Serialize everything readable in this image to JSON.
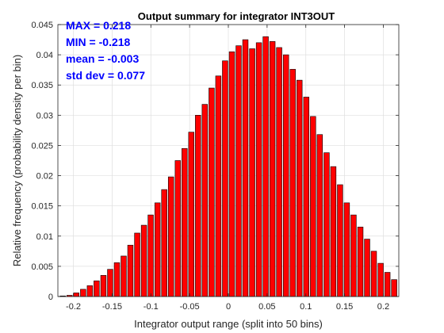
{
  "chart_data": {
    "type": "bar",
    "title": "Output summary for integrator INT3OUT",
    "xlabel": "Integrator output range (split into 50 bins)",
    "ylabel": "Relative frequency (probability density per bin)",
    "xlim": [
      -0.22,
      0.22
    ],
    "ylim": [
      0,
      0.045
    ],
    "xticks": [
      -0.2,
      -0.15,
      -0.1,
      -0.05,
      0,
      0.05,
      0.1,
      0.15,
      0.2
    ],
    "xtick_labels": [
      "-0.2",
      "-0.15",
      "-0.1",
      "-0.05",
      "0",
      "0.05",
      "0.1",
      "0.15",
      "0.2"
    ],
    "yticks": [
      0,
      0.005,
      0.01,
      0.015,
      0.02,
      0.025,
      0.03,
      0.035,
      0.04,
      0.045
    ],
    "ytick_labels": [
      "0",
      "0.005",
      "0.01",
      "0.015",
      "0.02",
      "0.025",
      "0.03",
      "0.035",
      "0.04",
      "0.045"
    ],
    "grid": true,
    "bar_color": "#ff0000",
    "bar_edge_color": "#000000",
    "x": [
      -0.2136,
      -0.2049,
      -0.1962,
      -0.1874,
      -0.1787,
      -0.17,
      -0.1612,
      -0.1525,
      -0.1438,
      -0.1351,
      -0.1264,
      -0.1176,
      -0.1089,
      -0.1002,
      -0.0914,
      -0.0827,
      -0.074,
      -0.0652,
      -0.0565,
      -0.0478,
      -0.0391,
      -0.0304,
      -0.0216,
      -0.0129,
      -0.0042,
      0.0046,
      0.0133,
      0.022,
      0.0308,
      0.0395,
      0.0482,
      0.0569,
      0.0656,
      0.0744,
      0.0831,
      0.0918,
      0.1006,
      0.1093,
      0.118,
      0.1268,
      0.1355,
      0.1442,
      0.1529,
      0.1616,
      0.1704,
      0.1791,
      0.1878,
      0.1966,
      0.2053,
      0.214
    ],
    "values": [
      0.0001,
      0.0002,
      0.0006,
      0.0012,
      0.0018,
      0.0026,
      0.0035,
      0.0045,
      0.0056,
      0.0067,
      0.0085,
      0.0105,
      0.0118,
      0.0135,
      0.0155,
      0.0177,
      0.0198,
      0.0225,
      0.0245,
      0.0272,
      0.03,
      0.0318,
      0.0345,
      0.0365,
      0.039,
      0.0405,
      0.0415,
      0.0425,
      0.041,
      0.042,
      0.043,
      0.0422,
      0.0412,
      0.04,
      0.0376,
      0.0358,
      0.033,
      0.0298,
      0.0268,
      0.0238,
      0.0215,
      0.0185,
      0.0155,
      0.0135,
      0.0115,
      0.0095,
      0.0075,
      0.0055,
      0.004,
      0.0028
    ],
    "annotations": {
      "color": "#0000ff",
      "lines": [
        "MAX = 0.218",
        "MIN = -0.218",
        "mean = -0.003",
        "std dev = 0.077"
      ]
    }
  }
}
